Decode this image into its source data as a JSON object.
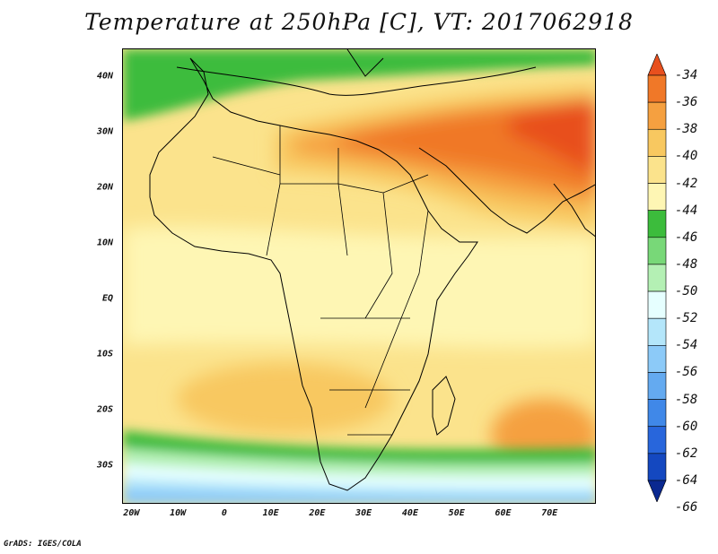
{
  "title": "Temperature at 250hPa [C], VT: 2017062918",
  "credit": "GrADS: IGES/COLA",
  "lat_labels": [
    "40N",
    "30N",
    "20N",
    "10N",
    "EQ",
    "10S",
    "20S",
    "30S"
  ],
  "lat_values": [
    40,
    30,
    20,
    10,
    0,
    -10,
    -20,
    -30
  ],
  "lon_labels": [
    "20W",
    "10W",
    "0",
    "10E",
    "20E",
    "30E",
    "40E",
    "50E",
    "60E",
    "70E"
  ],
  "lon_values": [
    -20,
    -10,
    0,
    10,
    20,
    30,
    40,
    50,
    60,
    70
  ],
  "colorbar": {
    "labels": [
      "-34",
      "-36",
      "-38",
      "-40",
      "-42",
      "-44",
      "-46",
      "-48",
      "-50",
      "-52",
      "-54",
      "-56",
      "-58",
      "-60",
      "-62",
      "-64",
      "-66"
    ],
    "colors": [
      "#e8501e",
      "#f07828",
      "#f5a040",
      "#f8c860",
      "#fbe38c",
      "#fef6b4",
      "#3cbc3c",
      "#78d878",
      "#b4f0b4",
      "#e6ffff",
      "#b4e6fa",
      "#8ccaf8",
      "#64aaf0",
      "#4088e8",
      "#2866dc",
      "#1448c0",
      "#0a2890"
    ]
  },
  "map_extent": {
    "lon_min": -22,
    "lon_max": 80,
    "lat_min": -37,
    "lat_max": 45
  }
}
